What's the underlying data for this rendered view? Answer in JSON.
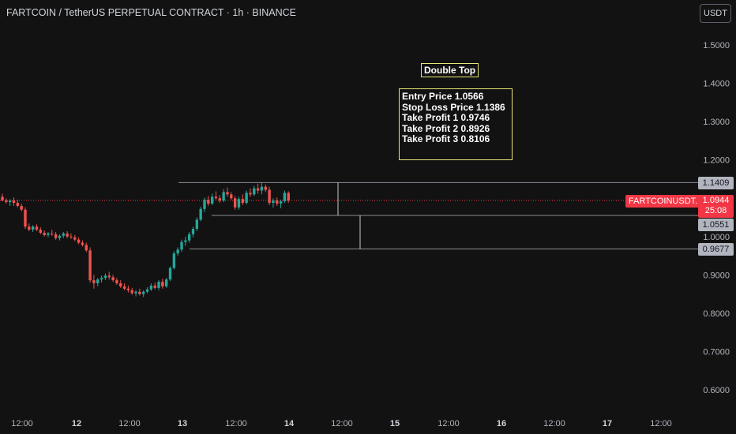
{
  "header": {
    "title": "FARTCOIN / TetherUS PERPETUAL CONTRACT · 1h · BINANCE",
    "currency_button": "USDT"
  },
  "price_axis": {
    "ticks": [
      "1.5000",
      "1.4000",
      "1.3000",
      "1.2000",
      "1.0000",
      "0.9000",
      "0.8000",
      "0.7000",
      "0.6000"
    ]
  },
  "time_axis": {
    "ticks": [
      "12:00",
      "12",
      "12:00",
      "13",
      "12:00",
      "14",
      "12:00",
      "15",
      "12:00",
      "16",
      "12:00",
      "17",
      "12:00"
    ]
  },
  "annotation": {
    "pattern_label": "Double Top",
    "lines": [
      "Entry Price 1.0566",
      "Stop Loss Price 1.1386",
      "Take Profit 1 0.9746",
      "Take Profit 2 0.8926",
      "Take Profit 3 0.8106"
    ]
  },
  "price_tags": {
    "upper": "1.1409",
    "symbol": "FARTCOINUSDT.P",
    "last_price": "1.0944",
    "countdown": "25:08",
    "neckline": "1.0551",
    "lower": "0.9677"
  },
  "colors": {
    "up": "#26a69a",
    "down": "#ef5350",
    "last_price": "#f23645",
    "annotation_border": "#e6e67a"
  },
  "chart_data": {
    "type": "candlestick",
    "interval": "1h",
    "ylim": [
      0.55,
      1.55
    ],
    "y_ticks": [
      1.5,
      1.4,
      1.3,
      1.2,
      1.0,
      0.9,
      0.8,
      0.7,
      0.6
    ],
    "last_price": 1.0944,
    "levels": [
      1.1409,
      1.0551,
      0.9677
    ],
    "candles": [
      [
        1.104,
        1.112,
        1.092,
        1.094
      ],
      [
        1.094,
        1.1,
        1.086,
        1.09
      ],
      [
        1.09,
        1.098,
        1.08,
        1.094
      ],
      [
        1.094,
        1.102,
        1.08,
        1.088
      ],
      [
        1.088,
        1.096,
        1.076,
        1.08
      ],
      [
        1.08,
        1.086,
        1.066,
        1.07
      ],
      [
        1.07,
        1.076,
        1.02,
        1.026
      ],
      [
        1.026,
        1.034,
        1.014,
        1.018
      ],
      [
        1.018,
        1.03,
        1.012,
        1.026
      ],
      [
        1.026,
        1.032,
        1.014,
        1.018
      ],
      [
        1.018,
        1.024,
        1.006,
        1.01
      ],
      [
        1.01,
        1.016,
        1.0,
        1.004
      ],
      [
        1.004,
        1.012,
        0.998,
        1.008
      ],
      [
        1.008,
        1.018,
        1.002,
        1.006
      ],
      [
        1.006,
        1.012,
        0.992,
        0.996
      ],
      [
        0.996,
        1.006,
        0.99,
        1.002
      ],
      [
        1.002,
        1.012,
        0.996,
        1.008
      ],
      [
        1.008,
        1.014,
        0.996,
        1.0
      ],
      [
        1.0,
        1.008,
        0.994,
        0.998
      ],
      [
        0.998,
        1.004,
        0.988,
        0.992
      ],
      [
        0.992,
        0.998,
        0.98,
        0.984
      ],
      [
        0.984,
        0.99,
        0.974,
        0.978
      ],
      [
        0.978,
        0.984,
        0.96,
        0.964
      ],
      [
        0.964,
        0.972,
        0.88,
        0.886
      ],
      [
        0.886,
        0.9,
        0.864,
        0.878
      ],
      [
        0.878,
        0.892,
        0.87,
        0.888
      ],
      [
        0.888,
        0.898,
        0.88,
        0.892
      ],
      [
        0.892,
        0.904,
        0.886,
        0.898
      ],
      [
        0.898,
        0.908,
        0.888,
        0.894
      ],
      [
        0.894,
        0.9,
        0.882,
        0.886
      ],
      [
        0.886,
        0.892,
        0.874,
        0.878
      ],
      [
        0.878,
        0.886,
        0.866,
        0.87
      ],
      [
        0.87,
        0.878,
        0.86,
        0.864
      ],
      [
        0.864,
        0.872,
        0.854,
        0.86
      ],
      [
        0.86,
        0.866,
        0.848,
        0.852
      ],
      [
        0.852,
        0.86,
        0.844,
        0.856
      ],
      [
        0.856,
        0.864,
        0.846,
        0.85
      ],
      [
        0.85,
        0.86,
        0.842,
        0.856
      ],
      [
        0.856,
        0.868,
        0.852,
        0.862
      ],
      [
        0.862,
        0.878,
        0.858,
        0.872
      ],
      [
        0.872,
        0.88,
        0.862,
        0.866
      ],
      [
        0.866,
        0.886,
        0.86,
        0.882
      ],
      [
        0.882,
        0.89,
        0.864,
        0.87
      ],
      [
        0.87,
        0.892,
        0.866,
        0.888
      ],
      [
        0.888,
        0.922,
        0.884,
        0.918
      ],
      [
        0.918,
        0.962,
        0.914,
        0.956
      ],
      [
        0.956,
        0.972,
        0.95,
        0.966
      ],
      [
        0.966,
        0.992,
        0.96,
        0.986
      ],
      [
        0.986,
        1.0,
        0.976,
        0.99
      ],
      [
        0.99,
        1.012,
        0.984,
        1.006
      ],
      [
        1.006,
        1.026,
        0.998,
        1.02
      ],
      [
        1.02,
        1.05,
        1.014,
        1.044
      ],
      [
        1.044,
        1.078,
        1.04,
        1.072
      ],
      [
        1.072,
        1.102,
        1.064,
        1.096
      ],
      [
        1.096,
        1.106,
        1.08,
        1.086
      ],
      [
        1.086,
        1.112,
        1.082,
        1.104
      ],
      [
        1.104,
        1.118,
        1.096,
        1.1
      ],
      [
        1.1,
        1.108,
        1.088,
        1.094
      ],
      [
        1.094,
        1.124,
        1.09,
        1.116
      ],
      [
        1.116,
        1.128,
        1.104,
        1.11
      ],
      [
        1.11,
        1.116,
        1.096,
        1.1
      ],
      [
        1.1,
        1.106,
        1.07,
        1.076
      ],
      [
        1.076,
        1.104,
        1.07,
        1.098
      ],
      [
        1.098,
        1.11,
        1.082,
        1.088
      ],
      [
        1.088,
        1.12,
        1.084,
        1.114
      ],
      [
        1.114,
        1.126,
        1.104,
        1.11
      ],
      [
        1.11,
        1.132,
        1.106,
        1.126
      ],
      [
        1.126,
        1.138,
        1.112,
        1.12
      ],
      [
        1.12,
        1.142,
        1.11,
        1.13
      ],
      [
        1.13,
        1.136,
        1.116,
        1.122
      ],
      [
        1.122,
        1.13,
        1.082,
        1.088
      ],
      [
        1.088,
        1.1,
        1.076,
        1.094
      ],
      [
        1.094,
        1.102,
        1.08,
        1.086
      ],
      [
        1.086,
        1.096,
        1.074,
        1.092
      ],
      [
        1.092,
        1.12,
        1.088,
        1.114
      ],
      [
        1.114,
        1.118,
        1.088,
        1.094
      ]
    ]
  }
}
